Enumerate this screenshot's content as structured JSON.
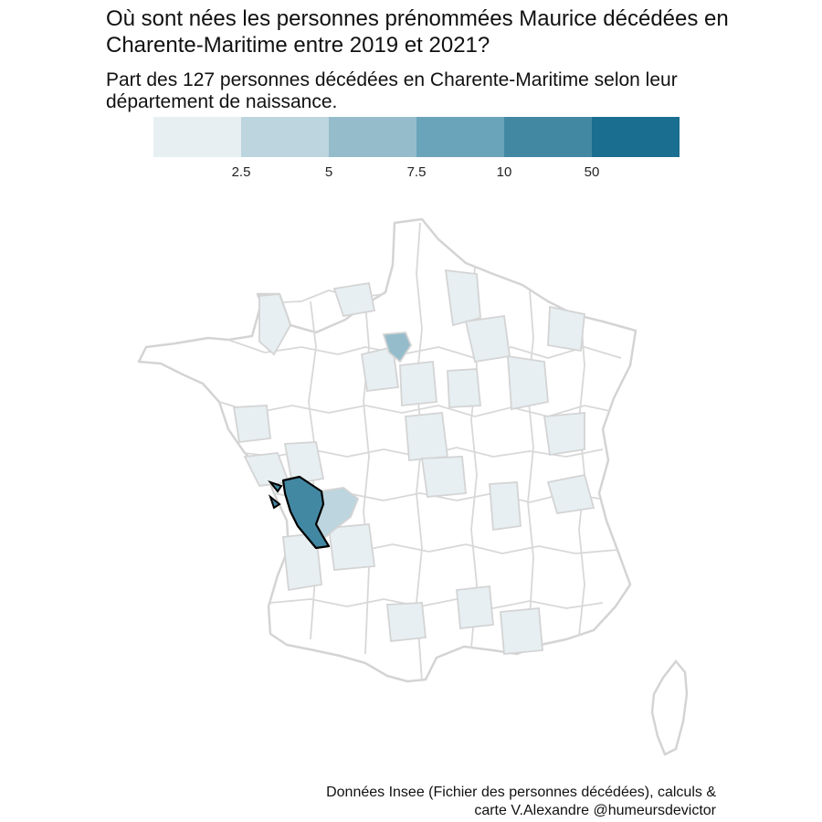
{
  "title": "Où sont nées les personnes prénommées Maurice décédées en Charente-Maritime entre 2019 et 2021?",
  "subtitle": "Part des 127 personnes décédées en Charente-Maritime selon leur département de naissance.",
  "caption_line1": "Données Insee (Fichier des personnes décédées), calculs &",
  "caption_line2": "carte V.Alexandre @humeursdevictor",
  "legend": {
    "tick_labels": [
      "2.5",
      "5",
      "7.5",
      "10",
      "50"
    ],
    "colors": [
      "#e7eff2",
      "#bdd5de",
      "#95bccb",
      "#6aa4ba",
      "#4388a3",
      "#1a6e90"
    ]
  },
  "map": {
    "highlighted_department": "Charente-Maritime",
    "departments": [
      {
        "name": "Charente-Maritime",
        "bin": 4
      },
      {
        "name": "Paris region",
        "bin": 2
      },
      {
        "name": "Charente",
        "bin": 1
      },
      {
        "name": "Gironde",
        "bin": 0
      },
      {
        "name": "Dordogne",
        "bin": 0
      },
      {
        "name": "Vendée",
        "bin": 0
      },
      {
        "name": "Deux-Sèvres",
        "bin": 0
      },
      {
        "name": "Aveyron",
        "bin": 0
      },
      {
        "name": "Savoie",
        "bin": 0
      }
    ]
  }
}
